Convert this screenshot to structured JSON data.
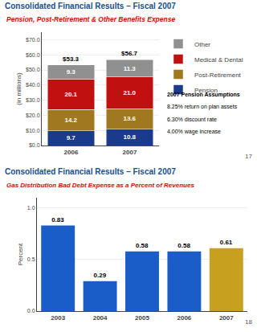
{
  "chart_data": [
    {
      "type": "bar",
      "title": "Consolidated Financial Results – Fiscal 2007",
      "subtitle": "Pension, Post-Retirement & Other Benefits Expense",
      "ylabel": "(in millions)",
      "categories": [
        "2006",
        "2007"
      ],
      "stacked": true,
      "data_labels": true,
      "series": [
        {
          "name": "Pension",
          "color": "#1A3A8C",
          "values": [
            9.7,
            10.8
          ],
          "value_labels": [
            "9.7",
            "10.8"
          ]
        },
        {
          "name": "Post-Retirement",
          "color": "#A07820",
          "values": [
            14.2,
            13.6
          ],
          "value_labels": [
            "14.2",
            "13.6"
          ]
        },
        {
          "name": "Medical & Dental",
          "color": "#C01010",
          "values": [
            20.1,
            21.0
          ],
          "value_labels": [
            "20.1",
            "21.0"
          ]
        },
        {
          "name": "Other",
          "color": "#909090",
          "values": [
            9.3,
            11.3
          ],
          "value_labels": [
            "9.3",
            "11.3"
          ]
        }
      ],
      "totals": {
        "values": [
          53.3,
          56.7
        ],
        "value_labels": [
          "$53.3",
          "$56.7"
        ]
      },
      "ylim": [
        0,
        75
      ],
      "yticks": [
        {
          "value": 0,
          "label": "$0.0"
        },
        {
          "value": 10,
          "label": "$10.0"
        },
        {
          "value": 20,
          "label": "$20.0"
        },
        {
          "value": 30,
          "label": "$30.0"
        },
        {
          "value": 40,
          "label": "$40.0"
        },
        {
          "value": 50,
          "label": "$50.0"
        },
        {
          "value": 60,
          "label": "$60.0"
        },
        {
          "value": 70,
          "label": "$70.0"
        }
      ],
      "grid": true,
      "legend": "right",
      "annotations": [
        "2007 Pension Assumptions",
        "8.25% return on plan assets",
        "6.30% discount rate",
        "4.00% wage increase"
      ],
      "page_number": "17"
    },
    {
      "type": "bar",
      "title": "Consolidated Financial Results – Fiscal 2007",
      "subtitle": "Gas Distribution Bad Debt Expense as a Percent of Revenues",
      "ylabel": "Percent",
      "categories": [
        "2003",
        "2004",
        "2005",
        "2006",
        "2007"
      ],
      "values": [
        0.83,
        0.29,
        0.58,
        0.58,
        0.61
      ],
      "colors": [
        "#1A5CC8",
        "#1A5CC8",
        "#1A5CC8",
        "#1A5CC8",
        "#C8A020"
      ],
      "data_labels": true,
      "ylim": [
        0.0,
        1.1
      ],
      "yticks": [
        {
          "value": 0.0,
          "label": "0.0"
        },
        0.5,
        {
          "value": 1.0,
          "label": "1.0"
        }
      ],
      "grid": true,
      "page_number": "18"
    }
  ]
}
